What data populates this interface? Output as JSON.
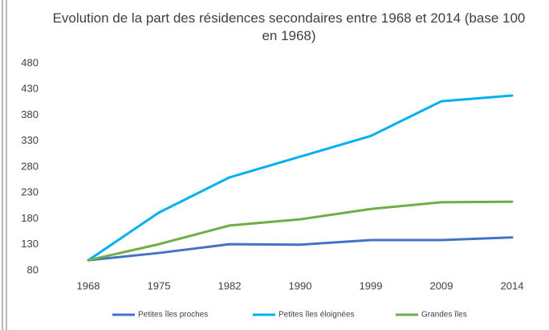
{
  "chart_data": {
    "type": "line",
    "title": "Evolution de la part des résidences secondaires entre 1968 et 2014 (base 100 en 1968)",
    "categories": [
      "1968",
      "1975",
      "1982",
      "1990",
      "1999",
      "2009",
      "2014"
    ],
    "series": [
      {
        "name": "Petites îles proches",
        "color": "#4472c4",
        "values": [
          100,
          114,
          131,
          130,
          139,
          139,
          144
        ]
      },
      {
        "name": "Petites îles éloignées",
        "color": "#00b0f0",
        "values": [
          100,
          192,
          260,
          300,
          340,
          407,
          418
        ]
      },
      {
        "name": "Grandes îles",
        "color": "#70ad47",
        "values": [
          100,
          131,
          167,
          179,
          199,
          212,
          213
        ]
      }
    ],
    "ylim": [
      80,
      480
    ],
    "yticks": [
      80,
      130,
      180,
      230,
      280,
      330,
      380,
      430,
      480
    ],
    "grid": false,
    "legend": "bottom"
  }
}
